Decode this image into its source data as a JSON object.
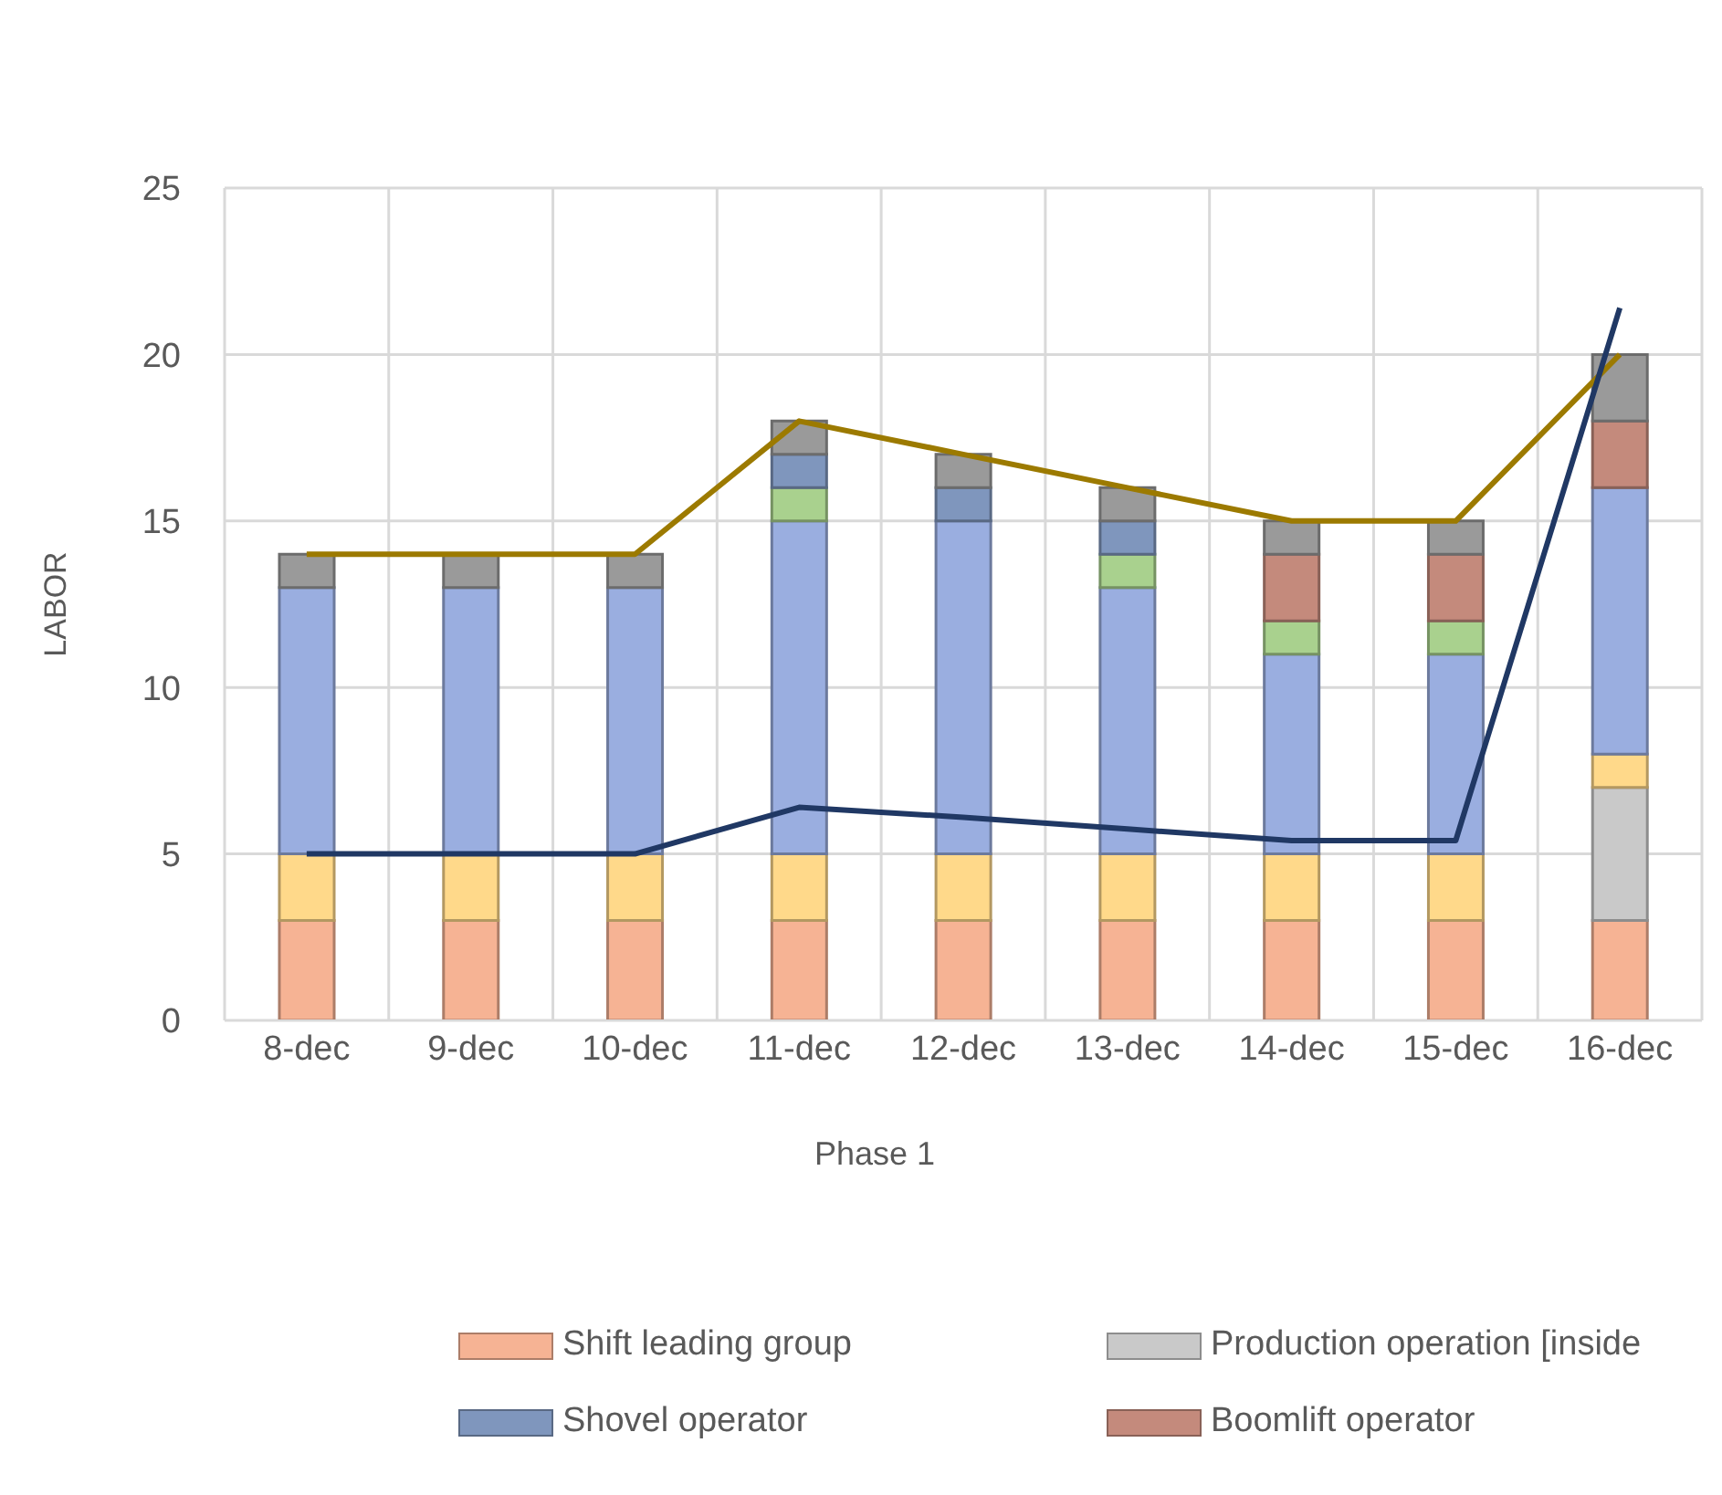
{
  "chart_data": {
    "type": "bar",
    "stacked": true,
    "ylabel": "LABOR",
    "categories": [
      "8-dec",
      "9-dec",
      "10-dec",
      "11-dec",
      "12-dec",
      "13-dec",
      "14-dec",
      "15-dec",
      "16-dec"
    ],
    "ylim": [
      0,
      25
    ],
    "yticks": [
      0,
      5,
      10,
      15,
      20,
      25
    ],
    "grid": true,
    "legend": "bottom",
    "marker": "none",
    "line_style": "solid",
    "annotations": [
      "Phase 1"
    ],
    "series": [
      {
        "name": "Shift leading group",
        "color": "#f6b394",
        "values": [
          3,
          3,
          3,
          3,
          3,
          3,
          3,
          3,
          3
        ]
      },
      {
        "name": "Production operation [inside",
        "color": "#c9c9c9",
        "values": [
          null,
          null,
          null,
          null,
          null,
          null,
          null,
          null,
          4
        ]
      },
      {
        "color": "#ffd98a",
        "values": [
          2,
          2,
          2,
          2,
          2,
          2,
          2,
          2,
          1
        ]
      },
      {
        "color": "#9aaee0",
        "values": [
          8,
          8,
          8,
          10,
          10,
          8,
          6,
          6,
          8
        ]
      },
      {
        "color": "#a9d18e",
        "values": [
          null,
          null,
          null,
          1,
          null,
          1,
          1,
          1,
          null
        ]
      },
      {
        "name": "Shovel operator",
        "color": "#7f96bd",
        "values": [
          null,
          null,
          null,
          1,
          1,
          1,
          null,
          null,
          null
        ]
      },
      {
        "name": "Boomlift operator",
        "color": "#c48a7c",
        "values": [
          null,
          null,
          null,
          null,
          null,
          null,
          2,
          2,
          2
        ]
      },
      {
        "color": "#9a9a9a",
        "values": [
          1,
          1,
          1,
          1,
          1,
          1,
          1,
          1,
          2
        ]
      },
      {
        "type": "line",
        "color": "#9c7a00",
        "values": [
          14,
          14,
          14,
          18,
          17,
          16,
          15,
          15,
          20
        ]
      },
      {
        "type": "line",
        "color": "#203864",
        "values": [
          5,
          5,
          5,
          6.4,
          6.1,
          5.75,
          5.4,
          5.4,
          21.4
        ]
      }
    ]
  }
}
